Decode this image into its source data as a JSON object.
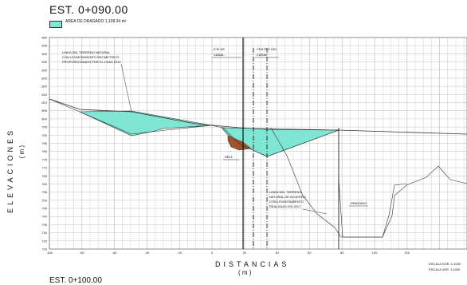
{
  "header": {
    "title": "EST. 0+090.00",
    "legend_label": "AREA DE DRAGADO 1,108.34 m²",
    "legend_color": "#7fe6d4"
  },
  "axes": {
    "y_label": "ELEVACIONES",
    "y_unit": "( m )",
    "x_label": "DISTANCIAS",
    "x_unit": "( m )",
    "y_ticks": [
      "850",
      "845",
      "840",
      "835",
      "830",
      "825",
      "820",
      "815",
      "810",
      "805",
      "800",
      "795",
      "790",
      "785",
      "780",
      "775",
      "770",
      "765",
      "760",
      "755",
      "750",
      "745",
      "740",
      "735",
      "730",
      "725",
      "720"
    ],
    "x_ticks": [
      "-100",
      "-80",
      "-60",
      "-40",
      "-20",
      "0",
      "20",
      "40",
      "60",
      "80",
      "100",
      "120"
    ]
  },
  "annotations": {
    "terrain_note": [
      "LINEA DEL TERRENO NATURAL",
      "CON LEVANTAMIENTO BATIMETRICO",
      "PROPORCIONADO POR EL CEAS 2012"
    ],
    "eje_label": [
      "EJE DE",
      "CANAL"
    ],
    "centro_label": [
      "CENTRO DEL",
      "CANAL"
    ],
    "relleno_label": "RELL",
    "terreno_note2": [
      "LINEA DEL TERRENO",
      "NATURAL DE ACUERDO",
      "CON LEVANTAMIENTO",
      "REALIZADO EN 2017"
    ],
    "dragado_label": "DRAGADO",
    "fill_color": "#a0522d",
    "grid_color": "#b4b4b4"
  },
  "scales": {
    "horizontal": "ESCALA HOR. 1:1000",
    "vertical": "ESCALA VER. 1:1000"
  },
  "next_station": "EST. 0+100.00"
}
